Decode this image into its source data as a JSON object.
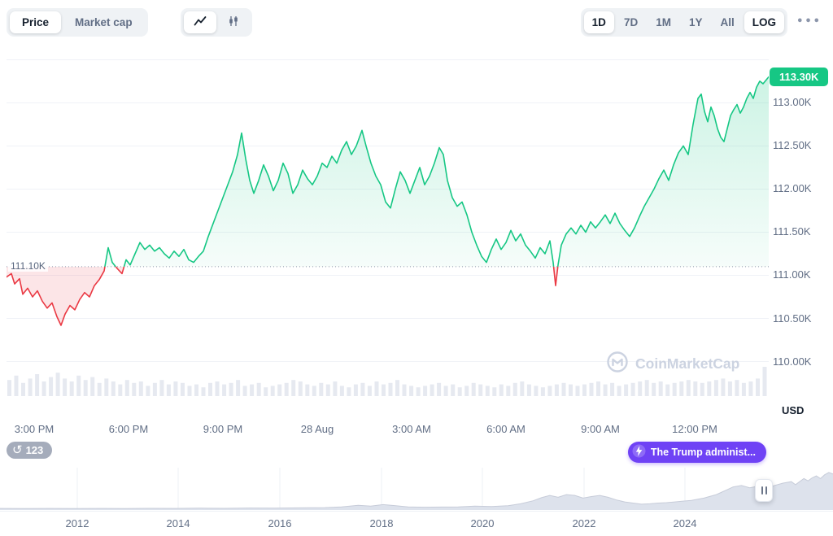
{
  "toolbar": {
    "metric_tabs": [
      {
        "label": "Price",
        "active": true
      },
      {
        "label": "Market cap",
        "active": false
      }
    ],
    "chart_type": [
      {
        "name": "line-chart",
        "active": true
      },
      {
        "name": "candlestick",
        "active": false
      }
    ],
    "ranges": [
      {
        "label": "1D",
        "active": true
      },
      {
        "label": "7D",
        "active": false
      },
      {
        "label": "1M",
        "active": false
      },
      {
        "label": "1Y",
        "active": false
      },
      {
        "label": "All",
        "active": false
      },
      {
        "label": "LOG",
        "active": true
      }
    ],
    "more_icon": "•••"
  },
  "badges": {
    "history_count": "123",
    "history_icon": "↺",
    "news_label": "The Trump administ..."
  },
  "watermark": {
    "text": "CoinMarketCap"
  },
  "colors": {
    "up": "#16c784",
    "down": "#ea3943",
    "news_purple": "#6f42f5",
    "grid": "#f0f2f7",
    "volume": "#e6e9f0",
    "nav_fill": "#dde2ec",
    "nav_stroke": "#c7ccd9"
  },
  "chart_data": {
    "type": "line",
    "unit": "USD",
    "baseline_price": 111.1,
    "baseline_label": "111.10K",
    "current_price": 113.3,
    "current_price_label": "113.30K",
    "y_range": [
      109.6,
      113.55
    ],
    "gridline_prices": [
      113.5,
      113.0,
      112.5,
      112.0,
      111.5,
      111.0,
      110.5,
      110.0
    ],
    "y_ticks": [
      {
        "price": 113.0,
        "label": "113.00K"
      },
      {
        "price": 112.5,
        "label": "112.50K"
      },
      {
        "price": 112.0,
        "label": "112.00K"
      },
      {
        "price": 111.5,
        "label": "111.50K"
      },
      {
        "price": 111.0,
        "label": "111.00K"
      },
      {
        "price": 110.5,
        "label": "110.50K"
      },
      {
        "price": 110.0,
        "label": "110.00K"
      }
    ],
    "x_labels": [
      "3:00 PM",
      "6:00 PM",
      "9:00 PM",
      "28 Aug",
      "3:00 AM",
      "6:00 AM",
      "9:00 AM",
      "12:00 PM"
    ],
    "price_points": [
      [
        0,
        110.98
      ],
      [
        6,
        111.02
      ],
      [
        10,
        110.9
      ],
      [
        16,
        110.96
      ],
      [
        20,
        110.78
      ],
      [
        26,
        110.85
      ],
      [
        32,
        110.75
      ],
      [
        38,
        110.82
      ],
      [
        44,
        110.7
      ],
      [
        50,
        110.62
      ],
      [
        56,
        110.68
      ],
      [
        62,
        110.52
      ],
      [
        67,
        110.42
      ],
      [
        72,
        110.55
      ],
      [
        78,
        110.65
      ],
      [
        84,
        110.6
      ],
      [
        90,
        110.72
      ],
      [
        96,
        110.8
      ],
      [
        102,
        110.75
      ],
      [
        108,
        110.88
      ],
      [
        114,
        110.95
      ],
      [
        120,
        111.05
      ],
      [
        125,
        111.32
      ],
      [
        130,
        111.15
      ],
      [
        136,
        111.08
      ],
      [
        142,
        111.02
      ],
      [
        147,
        111.18
      ],
      [
        152,
        111.12
      ],
      [
        158,
        111.25
      ],
      [
        164,
        111.38
      ],
      [
        170,
        111.3
      ],
      [
        176,
        111.35
      ],
      [
        182,
        111.28
      ],
      [
        188,
        111.32
      ],
      [
        194,
        111.25
      ],
      [
        200,
        111.2
      ],
      [
        206,
        111.28
      ],
      [
        212,
        111.22
      ],
      [
        218,
        111.3
      ],
      [
        224,
        111.18
      ],
      [
        230,
        111.15
      ],
      [
        236,
        111.22
      ],
      [
        242,
        111.28
      ],
      [
        248,
        111.45
      ],
      [
        254,
        111.6
      ],
      [
        260,
        111.75
      ],
      [
        266,
        111.9
      ],
      [
        272,
        112.05
      ],
      [
        278,
        112.2
      ],
      [
        284,
        112.4
      ],
      [
        289,
        112.65
      ],
      [
        294,
        112.35
      ],
      [
        299,
        112.1
      ],
      [
        304,
        111.95
      ],
      [
        310,
        112.1
      ],
      [
        316,
        112.28
      ],
      [
        322,
        112.15
      ],
      [
        328,
        111.98
      ],
      [
        334,
        112.1
      ],
      [
        340,
        112.3
      ],
      [
        346,
        112.18
      ],
      [
        352,
        111.95
      ],
      [
        358,
        112.05
      ],
      [
        364,
        112.22
      ],
      [
        370,
        112.12
      ],
      [
        376,
        112.05
      ],
      [
        382,
        112.15
      ],
      [
        388,
        112.3
      ],
      [
        394,
        112.25
      ],
      [
        400,
        112.38
      ],
      [
        406,
        112.3
      ],
      [
        412,
        112.45
      ],
      [
        418,
        112.55
      ],
      [
        424,
        112.4
      ],
      [
        430,
        112.5
      ],
      [
        437,
        112.68
      ],
      [
        442,
        112.5
      ],
      [
        448,
        112.3
      ],
      [
        454,
        112.15
      ],
      [
        460,
        112.05
      ],
      [
        466,
        111.85
      ],
      [
        472,
        111.78
      ],
      [
        478,
        112.0
      ],
      [
        484,
        112.2
      ],
      [
        490,
        112.1
      ],
      [
        496,
        111.95
      ],
      [
        502,
        112.1
      ],
      [
        508,
        112.25
      ],
      [
        514,
        112.05
      ],
      [
        520,
        112.15
      ],
      [
        526,
        112.3
      ],
      [
        532,
        112.48
      ],
      [
        537,
        112.4
      ],
      [
        542,
        112.1
      ],
      [
        548,
        111.9
      ],
      [
        554,
        111.8
      ],
      [
        560,
        111.85
      ],
      [
        566,
        111.7
      ],
      [
        572,
        111.5
      ],
      [
        578,
        111.35
      ],
      [
        584,
        111.22
      ],
      [
        590,
        111.15
      ],
      [
        596,
        111.3
      ],
      [
        602,
        111.42
      ],
      [
        608,
        111.3
      ],
      [
        614,
        111.38
      ],
      [
        620,
        111.52
      ],
      [
        626,
        111.4
      ],
      [
        632,
        111.48
      ],
      [
        638,
        111.35
      ],
      [
        644,
        111.28
      ],
      [
        650,
        111.2
      ],
      [
        656,
        111.32
      ],
      [
        662,
        111.25
      ],
      [
        668,
        111.4
      ],
      [
        672,
        111.15
      ],
      [
        675,
        110.88
      ],
      [
        678,
        111.12
      ],
      [
        682,
        111.35
      ],
      [
        688,
        111.48
      ],
      [
        694,
        111.55
      ],
      [
        700,
        111.48
      ],
      [
        706,
        111.58
      ],
      [
        712,
        111.5
      ],
      [
        718,
        111.62
      ],
      [
        724,
        111.55
      ],
      [
        730,
        111.62
      ],
      [
        736,
        111.7
      ],
      [
        742,
        111.6
      ],
      [
        748,
        111.72
      ],
      [
        754,
        111.6
      ],
      [
        760,
        111.52
      ],
      [
        766,
        111.45
      ],
      [
        772,
        111.55
      ],
      [
        778,
        111.68
      ],
      [
        784,
        111.8
      ],
      [
        790,
        111.9
      ],
      [
        796,
        112.0
      ],
      [
        802,
        112.12
      ],
      [
        808,
        112.22
      ],
      [
        814,
        112.1
      ],
      [
        820,
        112.28
      ],
      [
        826,
        112.42
      ],
      [
        832,
        112.5
      ],
      [
        838,
        112.4
      ],
      [
        844,
        112.75
      ],
      [
        850,
        113.05
      ],
      [
        854,
        113.1
      ],
      [
        858,
        112.9
      ],
      [
        862,
        112.78
      ],
      [
        866,
        112.95
      ],
      [
        870,
        112.85
      ],
      [
        874,
        112.7
      ],
      [
        878,
        112.6
      ],
      [
        882,
        112.55
      ],
      [
        886,
        112.7
      ],
      [
        890,
        112.85
      ],
      [
        894,
        112.92
      ],
      [
        898,
        112.98
      ],
      [
        902,
        112.88
      ],
      [
        906,
        112.95
      ],
      [
        910,
        113.05
      ],
      [
        914,
        113.12
      ],
      [
        918,
        113.05
      ],
      [
        922,
        113.18
      ],
      [
        926,
        113.25
      ],
      [
        930,
        113.22
      ],
      [
        937,
        113.3
      ]
    ],
    "volume": [
      0.55,
      0.7,
      0.45,
      0.6,
      0.75,
      0.5,
      0.65,
      0.8,
      0.6,
      0.5,
      0.7,
      0.55,
      0.65,
      0.45,
      0.6,
      0.5,
      0.4,
      0.55,
      0.45,
      0.5,
      0.35,
      0.45,
      0.55,
      0.4,
      0.5,
      0.45,
      0.35,
      0.4,
      0.3,
      0.45,
      0.5,
      0.4,
      0.45,
      0.55,
      0.35,
      0.4,
      0.45,
      0.3,
      0.35,
      0.4,
      0.45,
      0.55,
      0.5,
      0.4,
      0.35,
      0.45,
      0.4,
      0.5,
      0.35,
      0.3,
      0.4,
      0.45,
      0.35,
      0.5,
      0.4,
      0.45,
      0.55,
      0.4,
      0.35,
      0.3,
      0.35,
      0.4,
      0.45,
      0.35,
      0.4,
      0.3,
      0.35,
      0.45,
      0.4,
      0.35,
      0.3,
      0.4,
      0.35,
      0.45,
      0.5,
      0.4,
      0.35,
      0.3,
      0.35,
      0.4,
      0.45,
      0.4,
      0.35,
      0.4,
      0.45,
      0.5,
      0.4,
      0.45,
      0.35,
      0.4,
      0.45,
      0.5,
      0.55,
      0.45,
      0.5,
      0.4,
      0.45,
      0.5,
      0.55,
      0.5,
      0.45,
      0.5,
      0.55,
      0.6,
      0.5,
      0.55,
      0.45,
      0.5,
      0.6,
      1.0
    ],
    "navigator": {
      "year_labels": [
        "2012",
        "2014",
        "2016",
        "2018",
        "2020",
        "2022",
        "2024"
      ],
      "points": [
        [
          0,
          0.02
        ],
        [
          0.03,
          0.015
        ],
        [
          0.06,
          0.02
        ],
        [
          0.09,
          0.015
        ],
        [
          0.12,
          0.02
        ],
        [
          0.15,
          0.018
        ],
        [
          0.18,
          0.022
        ],
        [
          0.21,
          0.02
        ],
        [
          0.24,
          0.025
        ],
        [
          0.27,
          0.022
        ],
        [
          0.3,
          0.03
        ],
        [
          0.33,
          0.028
        ],
        [
          0.36,
          0.035
        ],
        [
          0.39,
          0.04
        ],
        [
          0.41,
          0.06
        ],
        [
          0.43,
          0.1
        ],
        [
          0.445,
          0.08
        ],
        [
          0.46,
          0.12
        ],
        [
          0.475,
          0.09
        ],
        [
          0.49,
          0.06
        ],
        [
          0.51,
          0.05
        ],
        [
          0.53,
          0.055
        ],
        [
          0.55,
          0.06
        ],
        [
          0.57,
          0.08
        ],
        [
          0.59,
          0.07
        ],
        [
          0.61,
          0.09
        ],
        [
          0.625,
          0.14
        ],
        [
          0.64,
          0.22
        ],
        [
          0.65,
          0.3
        ],
        [
          0.66,
          0.36
        ],
        [
          0.67,
          0.31
        ],
        [
          0.68,
          0.38
        ],
        [
          0.69,
          0.36
        ],
        [
          0.7,
          0.29
        ],
        [
          0.71,
          0.33
        ],
        [
          0.72,
          0.36
        ],
        [
          0.73,
          0.31
        ],
        [
          0.74,
          0.24
        ],
        [
          0.75,
          0.19
        ],
        [
          0.76,
          0.16
        ],
        [
          0.77,
          0.13
        ],
        [
          0.78,
          0.14
        ],
        [
          0.79,
          0.16
        ],
        [
          0.8,
          0.17
        ],
        [
          0.81,
          0.19
        ],
        [
          0.82,
          0.21
        ],
        [
          0.83,
          0.23
        ],
        [
          0.845,
          0.29
        ],
        [
          0.86,
          0.38
        ],
        [
          0.87,
          0.48
        ],
        [
          0.88,
          0.58
        ],
        [
          0.89,
          0.62
        ],
        [
          0.9,
          0.56
        ],
        [
          0.91,
          0.6
        ],
        [
          0.92,
          0.54
        ],
        [
          0.93,
          0.62
        ],
        [
          0.94,
          0.68
        ],
        [
          0.95,
          0.72
        ],
        [
          0.955,
          0.64
        ],
        [
          0.96,
          0.72
        ],
        [
          0.965,
          0.8
        ],
        [
          0.97,
          0.74
        ],
        [
          0.975,
          0.82
        ],
        [
          0.98,
          0.87
        ],
        [
          0.985,
          0.8
        ],
        [
          0.99,
          0.9
        ],
        [
          0.995,
          0.96
        ],
        [
          1,
          0.92
        ]
      ]
    }
  }
}
